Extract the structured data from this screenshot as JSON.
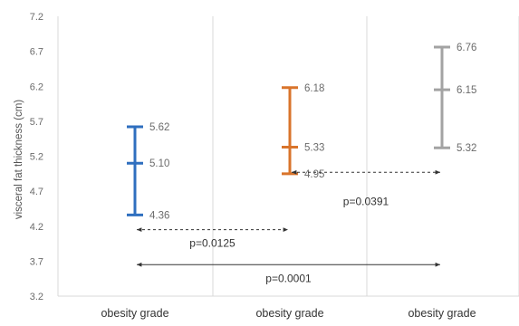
{
  "chart_data": {
    "type": "errorbar",
    "title": "",
    "xlabel": "",
    "ylabel": "visceral fat thickness (cm)",
    "ylim": [
      3.2,
      7.2
    ],
    "yticks": [
      "7.2",
      "6.7",
      "6.2",
      "5.7",
      "5.2",
      "4.7",
      "4.2",
      "3.7",
      "3.2"
    ],
    "grid": "vertical",
    "categories": [
      "obesity grade",
      "obesity grade",
      "obesity grade"
    ],
    "series": [
      {
        "color": "#2f6fbf",
        "points": [
          {
            "low": 4.36,
            "mid": 5.1,
            "high": 5.62,
            "low_label": "4.36",
            "mid_label": "5.10",
            "high_label": "5.62"
          },
          {
            "low": 4.95,
            "mid": 5.33,
            "high": 6.18,
            "low_label": "4.95",
            "mid_label": "5.33",
            "high_label": "6.18"
          },
          {
            "low": 5.32,
            "mid": 6.15,
            "high": 6.76,
            "low_label": "5.32",
            "mid_label": "6.15",
            "high_label": "6.76"
          }
        ],
        "colors": [
          "#2f6fbf",
          "#d9742b",
          "#a3a3a3"
        ]
      }
    ],
    "comparisons": [
      {
        "from": 1,
        "to": 2,
        "y": 4.97,
        "label": "p=0.0391",
        "label_y": 4.55,
        "style": "dashed"
      },
      {
        "from": 0,
        "to": 1,
        "y": 4.15,
        "label": "p=0.0125",
        "label_y": 3.96,
        "style": "dashed"
      },
      {
        "from": 0,
        "to": 2,
        "y": 3.65,
        "label": "p=0.0001",
        "label_y": 3.45,
        "style": "solid"
      }
    ]
  }
}
